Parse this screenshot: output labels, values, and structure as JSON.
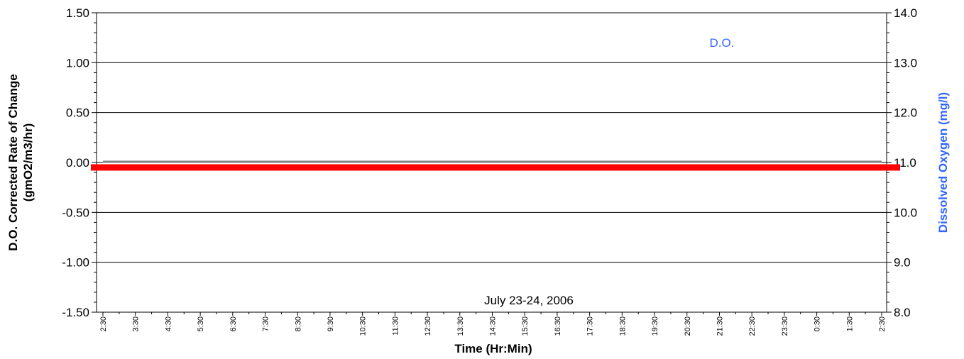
{
  "chart_data": {
    "type": "line",
    "annotation": "July 23-24, 2006",
    "legend_label": "D.O.",
    "xlabel": "Time (Hr:Min)",
    "ylabel_left_line1": "D.O. Corrected Rate of Change",
    "ylabel_left_line2": "(gmO2/m3/hr)",
    "ylabel_right": "Dissolved Oxygen (mg/l)",
    "x_tick_labels": [
      "2:30",
      "3:30",
      "4:30",
      "5:30",
      "6:30",
      "7:30",
      "8:30",
      "9:30",
      "10:30",
      "11:30",
      "12:30",
      "13:30",
      "14:30",
      "15:30",
      "16:30",
      "17:30",
      "18:30",
      "19:30",
      "20:30",
      "21:30",
      "22:30",
      "23:30",
      "0:30",
      "1:30",
      "2:30"
    ],
    "y_left": {
      "ticks": [
        1.5,
        1.0,
        0.5,
        0.0,
        -0.5,
        -1.0,
        -1.5
      ],
      "labels": [
        "1.50",
        "1.00",
        "0.50",
        "0.00",
        "-0.50",
        "-1.00",
        "-1.50"
      ],
      "range": [
        -1.5,
        1.5
      ]
    },
    "y_right": {
      "ticks": [
        14,
        13,
        12,
        11,
        10,
        9,
        8
      ],
      "labels": [
        "14.0",
        "13.0",
        "12.0",
        "11.0",
        "10.0",
        "9.0",
        "8.0"
      ],
      "range": [
        8,
        14
      ]
    },
    "grid": true,
    "series": [
      {
        "axis": "left",
        "color": "#ff0000",
        "values": [
          -0.05,
          -0.05
        ]
      },
      {
        "axis": "left",
        "color": "#808080",
        "values": [
          0.0,
          0.0
        ]
      }
    ],
    "colors": {
      "legend": "#3366ff",
      "right_axis_title": "#3366ff",
      "grid": "#000000"
    }
  }
}
